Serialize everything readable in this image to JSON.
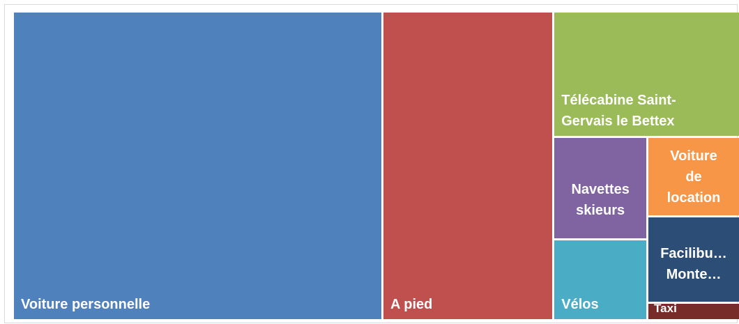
{
  "chart_data": {
    "type": "treemap",
    "title": "",
    "items": [
      {
        "name": "Voiture personnelle",
        "value": 52.8,
        "color": "#4f81bd",
        "label": "Voiture personnelle"
      },
      {
        "name": "A pied",
        "value": 24.5,
        "color": "#c0504d",
        "label": "A pied"
      },
      {
        "name": "Télécabine Saint-Gervais le Bettex",
        "value": 10.8,
        "color": "#9bbb59",
        "label": "Télécabine Saint-\nGervais le Bettex"
      },
      {
        "name": "Navettes skieurs",
        "value": 4.5,
        "color": "#8064a2",
        "label": "Navettes\nskieurs"
      },
      {
        "name": "Vélos",
        "value": 3.5,
        "color": "#4bacc6",
        "label": "Vélos"
      },
      {
        "name": "Voiture de location",
        "value": 3.4,
        "color": "#f79646",
        "label": "Voiture\nde\nlocation"
      },
      {
        "name": "Facilibus Montenvers",
        "value": 3.7,
        "color": "#2c4d75",
        "label": "Facilibu…\nMonte…"
      },
      {
        "name": "Taxi",
        "value": 0.7,
        "color": "#772c2a",
        "label": "Taxi"
      }
    ]
  }
}
